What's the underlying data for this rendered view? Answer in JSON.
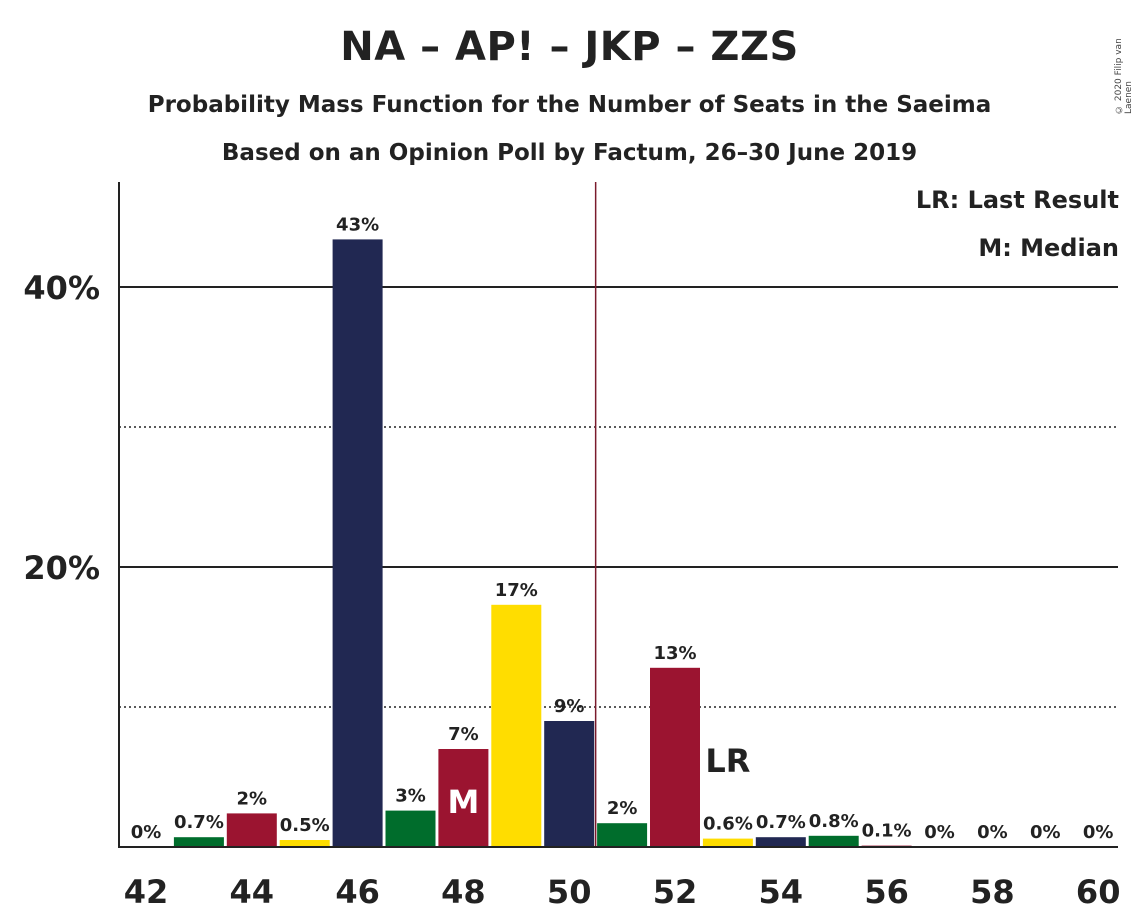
{
  "header": {
    "title": "NA – AP! – JKP – ZZS",
    "subtitle1": "Probability Mass Function for the Number of Seats in the Saeima",
    "subtitle2": "Based on an Opinion Poll by Factum, 26–30 June 2019",
    "copyright": "© 2020 Filip van Laenen"
  },
  "legend": {
    "lr": "LR: Last Result",
    "median": "M: Median"
  },
  "chart_data": {
    "type": "bar",
    "categories": [
      42,
      43,
      44,
      45,
      46,
      47,
      48,
      49,
      50,
      51,
      52,
      53,
      54,
      55,
      56,
      57,
      58,
      59,
      60
    ],
    "values": [
      0,
      0.7,
      2.4,
      0.5,
      43.4,
      2.6,
      7.0,
      17.3,
      9.0,
      1.7,
      12.8,
      0.6,
      0.7,
      0.8,
      0.1,
      0,
      0,
      0,
      0
    ],
    "labels": [
      "0%",
      "0.7%",
      "2%",
      "0.5%",
      "43%",
      "3%",
      "7%",
      "17%",
      "9%",
      "2%",
      "13%",
      "0.6%",
      "0.7%",
      "0.8%",
      "0.1%",
      "0%",
      "0%",
      "0%",
      "0%"
    ],
    "colors": [
      "#212852",
      "#006d2c",
      "#9b1430",
      "#ffdd00",
      "#212852",
      "#006d2c",
      "#9b1430",
      "#ffdd00",
      "#212852",
      "#006d2c",
      "#9b1430",
      "#ffdd00",
      "#212852",
      "#006d2c",
      "#9b1430",
      "#ffdd00",
      "#212852",
      "#006d2c",
      "#9b1430"
    ],
    "x_tick_labels": [
      "42",
      "44",
      "46",
      "48",
      "50",
      "52",
      "54",
      "56",
      "58",
      "60"
    ],
    "y_ticks": [
      {
        "value": 20,
        "label": "20%"
      },
      {
        "value": 40,
        "label": "40%"
      }
    ],
    "minor_gridlines": [
      10,
      30
    ],
    "ylim": [
      0,
      47.5
    ],
    "last_result_line": 50.5,
    "median_seat": 48,
    "median_marker": "M",
    "last_result_seat": 53,
    "last_result_marker": "LR",
    "colors_meta": {
      "median_line": "#7a1b2c",
      "axis": "#222222"
    }
  }
}
